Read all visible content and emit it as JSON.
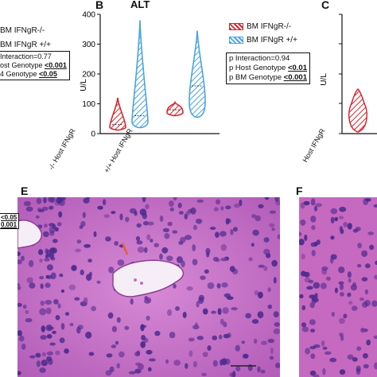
{
  "panelA": {
    "legend": [
      "BM IFNgR-/-",
      "BM IFNgR +/+"
    ],
    "stats": [
      {
        "pre": "Interaction=0.77",
        "val": ""
      },
      {
        "pre": "ost Genotype ",
        "val": "<0.001"
      },
      {
        "pre": "4 Genotype ",
        "val": "<0.05"
      }
    ]
  },
  "panelB": {
    "letter": "B",
    "title": "ALT",
    "ylabel": "U/L",
    "yticks": [
      "0",
      "100",
      "200",
      "300",
      "400"
    ],
    "xlabels": [
      "Host IFNgR -/-",
      "Host IFNgR +/+"
    ],
    "legend": [
      "BM IFNgR-/-",
      "BM IFNgR +/+"
    ],
    "stats": [
      {
        "pre": "p Interaction=0.94",
        "val": ""
      },
      {
        "pre": "p Host Genotype ",
        "val": "<0.01"
      },
      {
        "pre": "p BM Genotype ",
        "val": "<0.001"
      }
    ]
  },
  "panelC": {
    "letter": "C",
    "ylabel": "U/L",
    "xlabel": "Host IFNgR"
  },
  "panelE": {
    "letter": "E",
    "cut_labels": [
      "<0.05",
      "0.001"
    ]
  },
  "panelF": {
    "letter": "F"
  },
  "colors": {
    "red": "#d7262e",
    "blue": "#4aa3df",
    "tissue_pink": "#c86cc4",
    "nuclei": "#4b2a8c"
  },
  "chart_data": {
    "type": "violin",
    "title": "ALT",
    "ylabel": "U/L",
    "ylim": [
      0,
      400
    ],
    "categories": [
      "Host IFNgR -/-",
      "Host IFNgR +/+"
    ],
    "series": [
      {
        "name": "BM IFNgR-/-",
        "min": [
          12,
          60
        ],
        "median": [
          30,
          80
        ],
        "max": [
          120,
          105
        ]
      },
      {
        "name": "BM IFNgR +/+",
        "min": [
          20,
          55
        ],
        "median": [
          60,
          160
        ],
        "max": [
          380,
          345
        ]
      }
    ]
  }
}
